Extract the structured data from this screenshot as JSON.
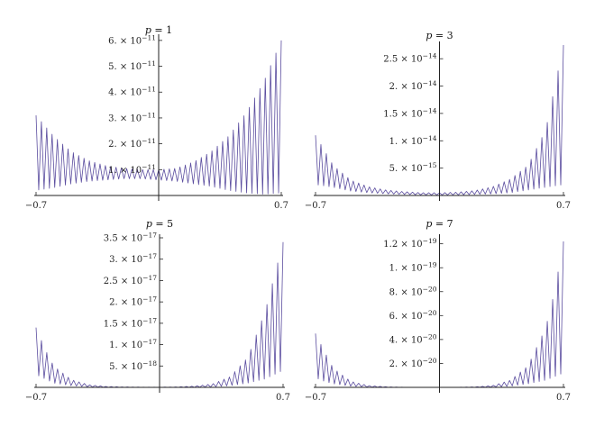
{
  "chart_data": [
    {
      "type": "line",
      "title": "p = 1",
      "title_var": "p",
      "title_rest": " = 1",
      "xlim": [
        -0.7,
        0.7
      ],
      "ylim": [
        0,
        6.1e-11
      ],
      "xticks": [
        {
          "value": -0.7,
          "label": "−0.7"
        },
        {
          "value": 0.7,
          "label": "0.7"
        }
      ],
      "yticks": [
        {
          "value": 1e-11,
          "mant": "1.",
          "exp": "−11"
        },
        {
          "value": 2e-11,
          "mant": "2.",
          "exp": "−11"
        },
        {
          "value": 3e-11,
          "mant": "3.",
          "exp": "−11"
        },
        {
          "value": 4e-11,
          "mant": "4.",
          "exp": "−11"
        },
        {
          "value": 5e-11,
          "mant": "5.",
          "exp": "−11"
        },
        {
          "value": 6e-11,
          "mant": "6.",
          "exp": "−11"
        }
      ],
      "series": [
        {
          "color": "#5b4d9f",
          "oscillations": 46,
          "x": [
            -0.7,
            -0.6,
            -0.5,
            -0.4,
            -0.3,
            -0.2,
            -0.1,
            0.0,
            0.1,
            0.2,
            0.3,
            0.4,
            0.5,
            0.6,
            0.7
          ],
          "upper": [
            3.1e-11,
            2.3e-11,
            1.7e-11,
            1.35e-11,
            1.15e-11,
            1.05e-11,
            1e-11,
            1e-11,
            1.05e-11,
            1.3e-11,
            1.7e-11,
            2.3e-11,
            3.2e-11,
            4.4e-11,
            6e-11
          ],
          "lower": [
            2e-12,
            3e-12,
            4.5e-12,
            5.5e-12,
            6e-12,
            6.5e-12,
            6.5e-12,
            6e-12,
            5.5e-12,
            4.5e-12,
            3.5e-12,
            2e-12,
            1e-12,
            5e-13,
            1e-12
          ]
        }
      ]
    },
    {
      "type": "line",
      "title": "p = 3",
      "title_var": "p",
      "title_rest": " = 3",
      "xlim": [
        -0.7,
        0.7
      ],
      "ylim": [
        0,
        2.75e-14
      ],
      "xticks": [
        {
          "value": -0.7,
          "label": "−0.7"
        },
        {
          "value": 0.7,
          "label": "0.7"
        }
      ],
      "yticks": [
        {
          "value": 5e-15,
          "mant": "5.",
          "exp": "−15"
        },
        {
          "value": 1e-14,
          "mant": "1.",
          "exp": "−14"
        },
        {
          "value": 1.5e-14,
          "mant": "1.5",
          "exp": "−14"
        },
        {
          "value": 2e-14,
          "mant": "2.",
          "exp": "−14"
        },
        {
          "value": 2.5e-14,
          "mant": "2.5",
          "exp": "−14"
        }
      ],
      "series": [
        {
          "color": "#5b4d9f",
          "oscillations": 46,
          "x": [
            -0.7,
            -0.6,
            -0.5,
            -0.4,
            -0.3,
            -0.2,
            -0.1,
            0.0,
            0.1,
            0.2,
            0.3,
            0.4,
            0.5,
            0.6,
            0.7
          ],
          "upper": [
            1.1e-14,
            5.5e-15,
            2.8e-15,
            1.6e-15,
            1e-15,
            7e-16,
            5e-16,
            5e-16,
            6e-16,
            9e-16,
            1.6e-15,
            3e-15,
            5.5e-15,
            1.2e-14,
            2.75e-14
          ],
          "lower": [
            2e-15,
            1.5e-15,
            8e-16,
            5e-16,
            3e-16,
            2e-16,
            1e-16,
            1e-16,
            1e-16,
            2e-16,
            3e-16,
            5e-16,
            1e-15,
            1.5e-15,
            2e-15
          ]
        }
      ]
    },
    {
      "type": "line",
      "title": "p = 5",
      "title_var": "p",
      "title_rest": " = 5",
      "xlim": [
        -0.7,
        0.7
      ],
      "ylim": [
        0,
        3.5e-17
      ],
      "xticks": [
        {
          "value": -0.7,
          "label": "−0.7"
        },
        {
          "value": 0.7,
          "label": "0.7"
        }
      ],
      "yticks": [
        {
          "value": 5e-18,
          "mant": "5.",
          "exp": "−18"
        },
        {
          "value": 1e-17,
          "mant": "1.",
          "exp": "−17"
        },
        {
          "value": 1.5e-17,
          "mant": "1.5",
          "exp": "−17"
        },
        {
          "value": 2e-17,
          "mant": "2.",
          "exp": "−17"
        },
        {
          "value": 2.5e-17,
          "mant": "2.5",
          "exp": "−17"
        },
        {
          "value": 3e-17,
          "mant": "3.",
          "exp": "−17"
        },
        {
          "value": 3.5e-17,
          "mant": "3.5",
          "exp": "−17"
        }
      ],
      "series": [
        {
          "color": "#5b4d9f",
          "oscillations": 46,
          "x": [
            -0.7,
            -0.65,
            -0.6,
            -0.5,
            -0.4,
            -0.3,
            -0.2,
            -0.1,
            0.0,
            0.1,
            0.2,
            0.3,
            0.4,
            0.5,
            0.6,
            0.65,
            0.7
          ],
          "upper": [
            1.4e-17,
            9e-18,
            5e-18,
            1.8e-18,
            6e-19,
            2e-19,
            1e-19,
            5e-20,
            5e-20,
            1e-19,
            3e-19,
            8e-19,
            2.5e-18,
            7e-18,
            1.8e-17,
            2.6e-17,
            3.4e-17
          ],
          "lower": [
            3e-18,
            2e-18,
            1e-18,
            4e-19,
            1e-19,
            0.0,
            0.0,
            0.0,
            0.0,
            0.0,
            0.0,
            1e-19,
            4e-19,
            1e-18,
            2e-18,
            3e-18,
            4e-18
          ]
        }
      ]
    },
    {
      "type": "line",
      "title": "p = 7",
      "title_var": "p",
      "title_rest": " = 7",
      "xlim": [
        -0.7,
        0.7
      ],
      "ylim": [
        0,
        1.25e-19
      ],
      "xticks": [
        {
          "value": -0.7,
          "label": "−0.7"
        },
        {
          "value": 0.7,
          "label": "0.7"
        }
      ],
      "yticks": [
        {
          "value": 2e-20,
          "mant": "2.",
          "exp": "−20"
        },
        {
          "value": 4e-20,
          "mant": "4.",
          "exp": "−20"
        },
        {
          "value": 6e-20,
          "mant": "6.",
          "exp": "−20"
        },
        {
          "value": 8e-20,
          "mant": "8.",
          "exp": "−20"
        },
        {
          "value": 1e-19,
          "mant": "1.",
          "exp": "−19"
        },
        {
          "value": 1.2e-19,
          "mant": "1.2",
          "exp": "−19"
        }
      ],
      "series": [
        {
          "color": "#5b4d9f",
          "oscillations": 46,
          "x": [
            -0.7,
            -0.65,
            -0.6,
            -0.5,
            -0.4,
            -0.3,
            -0.2,
            -0.1,
            0.0,
            0.1,
            0.2,
            0.3,
            0.4,
            0.5,
            0.6,
            0.65,
            0.7
          ],
          "upper": [
            4.5e-20,
            3e-20,
            1.6e-20,
            5e-21,
            1.5e-21,
            5e-22,
            1e-22,
            0.0,
            0.0,
            1e-22,
            4e-22,
            1.5e-21,
            6e-21,
            1.8e-20,
            5e-20,
            8e-20,
            1.22e-19
          ],
          "lower": [
            8e-21,
            5e-21,
            3e-21,
            1e-21,
            2e-22,
            0.0,
            0.0,
            0.0,
            0.0,
            0.0,
            0.0,
            2e-22,
            1e-21,
            3e-21,
            6e-21,
            9e-21,
            1.2e-20
          ]
        }
      ]
    }
  ]
}
